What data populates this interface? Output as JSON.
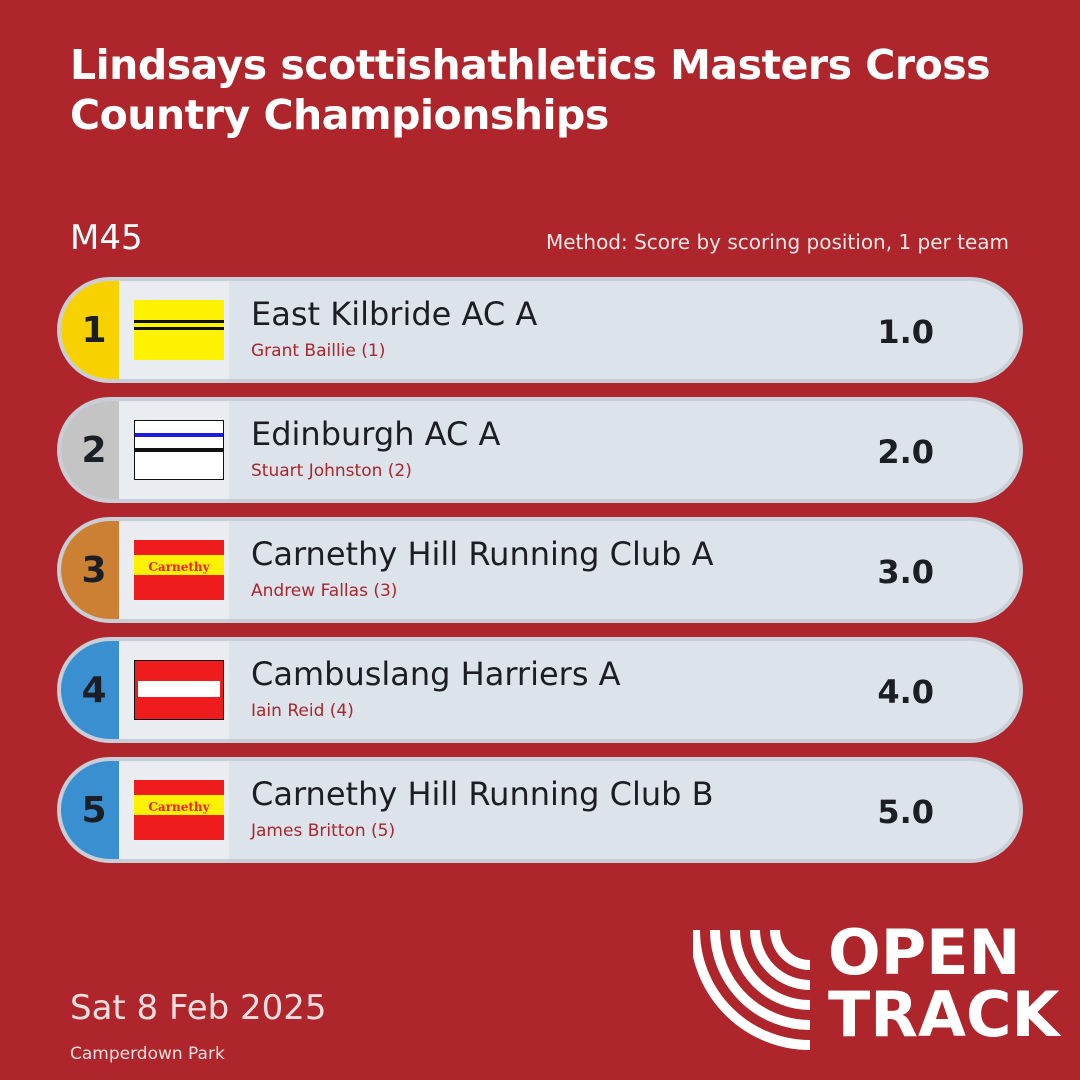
{
  "title": "Lindsays scottishathletics Masters Cross Country Championships",
  "category": "M45",
  "method": "Method: Score by scoring position, 1 per team",
  "results": [
    {
      "rank": "1",
      "team": "East Kilbride AC A",
      "athlete": "Grant Baillie (1)",
      "score": "1.0",
      "rank_color": "#f7d200",
      "flag": "east-kilbride"
    },
    {
      "rank": "2",
      "team": "Edinburgh AC A",
      "athlete": "Stuart Johnston (2)",
      "score": "2.0",
      "rank_color": "#c4c4c4",
      "flag": "edinburgh"
    },
    {
      "rank": "3",
      "team": "Carnethy Hill Running Club A",
      "athlete": "Andrew Fallas (3)",
      "score": "3.0",
      "rank_color": "#cc8033",
      "flag": "carnethy",
      "flag_text": "Carnethy"
    },
    {
      "rank": "4",
      "team": "Cambuslang Harriers A",
      "athlete": "Iain Reid (4)",
      "score": "4.0",
      "rank_color": "#3a8fd1",
      "flag": "cambuslang"
    },
    {
      "rank": "5",
      "team": "Carnethy Hill Running Club B",
      "athlete": "James Britton (5)",
      "score": "5.0",
      "rank_color": "#3a8fd1",
      "flag": "carnethy",
      "flag_text": "Carnethy"
    }
  ],
  "date": "Sat 8 Feb 2025",
  "venue": "Camperdown Park",
  "logo": {
    "line1": "OPEN",
    "line2": "TRACK"
  },
  "colors": {
    "background": "#ae262b",
    "row": "#dde3ea",
    "athlete_text": "#a8262c"
  }
}
